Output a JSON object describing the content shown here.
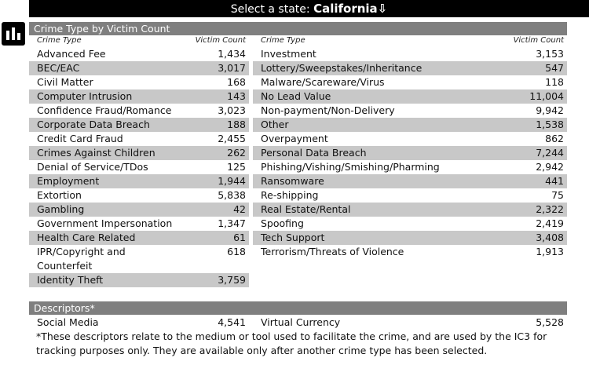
{
  "header": {
    "prompt": "Select a state:",
    "state": "California⇩"
  },
  "crime_section": {
    "title": "Crime Type by Victim Count",
    "col_label_type": "Crime Type",
    "col_label_count": "Victim Count"
  },
  "left_rows": [
    {
      "name": "Advanced Fee",
      "count": "1,434"
    },
    {
      "name": "BEC/EAC",
      "count": "3,017"
    },
    {
      "name": "Civil Matter",
      "count": "168"
    },
    {
      "name": "Computer Intrusion",
      "count": "143"
    },
    {
      "name": "Confidence Fraud/Romance",
      "count": "3,023"
    },
    {
      "name": "Corporate Data Breach",
      "count": "188"
    },
    {
      "name": "Credit Card Fraud",
      "count": "2,455"
    },
    {
      "name": "Crimes Against Children",
      "count": "262"
    },
    {
      "name": "Denial of Service/TDos",
      "count": "125"
    },
    {
      "name": "Employment",
      "count": "1,944"
    },
    {
      "name": "Extortion",
      "count": "5,838"
    },
    {
      "name": "Gambling",
      "count": "42"
    },
    {
      "name": "Government Impersonation",
      "count": "1,347"
    },
    {
      "name": "Health Care Related",
      "count": "61"
    },
    {
      "name": "IPR/Copyright and Counterfeit",
      "count": "618"
    },
    {
      "name": "Identity Theft",
      "count": "3,759"
    }
  ],
  "right_rows": [
    {
      "name": "Investment",
      "count": "3,153"
    },
    {
      "name": "Lottery/Sweepstakes/Inheritance",
      "count": "547"
    },
    {
      "name": "Malware/Scareware/Virus",
      "count": "118"
    },
    {
      "name": "No Lead Value",
      "count": "11,004"
    },
    {
      "name": "Non-payment/Non-Delivery",
      "count": "9,942"
    },
    {
      "name": "Other",
      "count": "1,538"
    },
    {
      "name": "Overpayment",
      "count": "862"
    },
    {
      "name": "Personal Data Breach",
      "count": "7,244"
    },
    {
      "name": "Phishing/Vishing/Smishing/Pharming",
      "count": "2,942"
    },
    {
      "name": "Ransomware",
      "count": "441"
    },
    {
      "name": "Re-shipping",
      "count": "75"
    },
    {
      "name": "Real Estate/Rental",
      "count": "2,322"
    },
    {
      "name": "Spoofing",
      "count": "2,419"
    },
    {
      "name": "Tech Support",
      "count": "3,408"
    },
    {
      "name": "Terrorism/Threats of Violence",
      "count": "1,913"
    }
  ],
  "descriptors": {
    "title": "Descriptors*",
    "left": {
      "name": "Social Media",
      "count": "4,541"
    },
    "right": {
      "name": "Virtual Currency",
      "count": "5,528"
    },
    "footnote": "*These descriptors relate to the medium or tool used to facilitate the crime, and are used by the IC3 for tracking purposes only. They are available only after another crime type has been selected."
  }
}
